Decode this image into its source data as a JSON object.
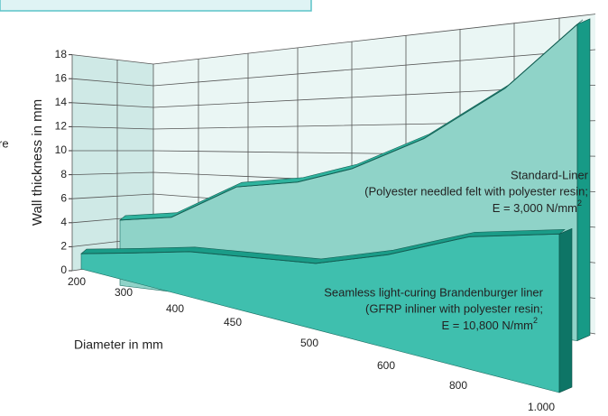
{
  "chart_data": {
    "type": "area3d",
    "y_label": "Wall thickness in mm",
    "x_label": "Diameter in mm",
    "partial_text": "re",
    "categories": [
      "200",
      "300",
      "400",
      "450",
      "500",
      "600",
      "800",
      "1.000"
    ],
    "ylim": [
      0,
      18
    ],
    "yticks": [
      0,
      2,
      4,
      6,
      8,
      10,
      12,
      14,
      16,
      18
    ],
    "grid": true,
    "series": [
      {
        "name": "Standard-Liner",
        "color": "#8fd3c8",
        "note_lines": [
          "(Polyester needled felt with polyester resin;",
          "E = 3,000  N/mm",
          "2"
        ],
        "values": [
          4.5,
          5,
          7.5,
          8,
          9,
          11,
          14,
          17.5
        ]
      },
      {
        "name": "Seamless light-curing Brandenburger liner",
        "color": "#3fbfae",
        "note_lines": [
          "(GFRP inliner with polyester resin;",
          "E = 10,800 N/mm",
          "2"
        ],
        "values": [
          1.5,
          2,
          2.5,
          2.5,
          2.5,
          3.5,
          5,
          5.5
        ]
      }
    ]
  }
}
